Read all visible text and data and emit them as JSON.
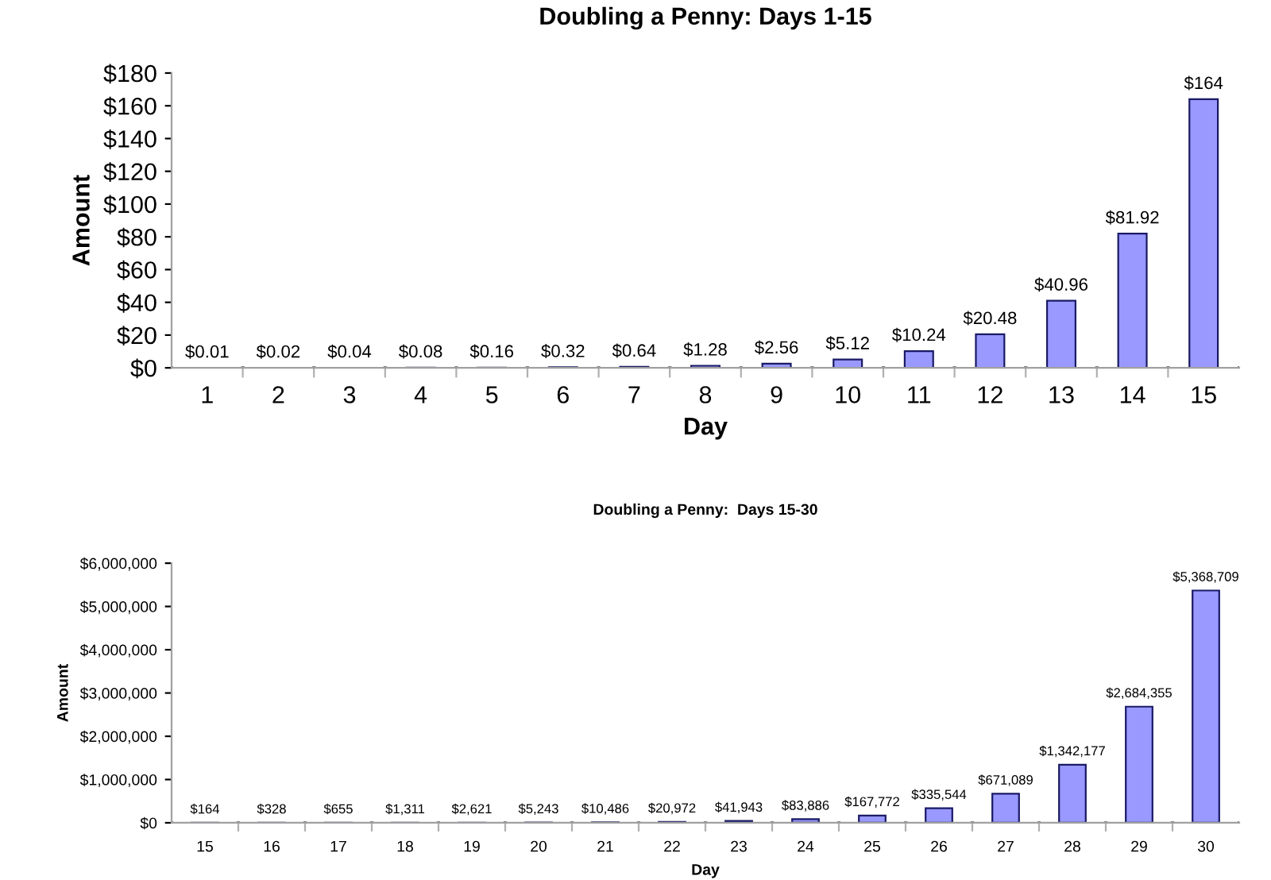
{
  "chart_data": [
    {
      "type": "bar",
      "title": "Doubling a Penny: Days 1-15",
      "xlabel": "Day",
      "ylabel": "Amount",
      "categories": [
        "1",
        "2",
        "3",
        "4",
        "5",
        "6",
        "7",
        "8",
        "9",
        "10",
        "11",
        "12",
        "13",
        "14",
        "15"
      ],
      "values": [
        0.01,
        0.02,
        0.04,
        0.08,
        0.16,
        0.32,
        0.64,
        1.28,
        2.56,
        5.12,
        10.24,
        20.48,
        40.96,
        81.92,
        164
      ],
      "value_labels": [
        "$0.01",
        "$0.02",
        "$0.04",
        "$0.08",
        "$0.16",
        "$0.32",
        "$0.64",
        "$1.28",
        "$2.56",
        "$5.12",
        "$10.24",
        "$20.48",
        "$40.96",
        "$81.92",
        "$164"
      ],
      "color": "#9999ff",
      "ylim": [
        0,
        180
      ],
      "yticks": [
        {
          "value": 0,
          "label": "$0"
        },
        {
          "value": 20,
          "label": "$20"
        },
        {
          "value": 40,
          "label": "$40"
        },
        {
          "value": 60,
          "label": "$60"
        },
        {
          "value": 80,
          "label": "$80"
        },
        {
          "value": 100,
          "label": "$100"
        },
        {
          "value": 120,
          "label": "$120"
        },
        {
          "value": 140,
          "label": "$140"
        },
        {
          "value": 160,
          "label": "$160"
        },
        {
          "value": 180,
          "label": "$180"
        }
      ],
      "grid": false,
      "legend": false
    },
    {
      "type": "bar",
      "title": "Doubling a Penny:  Days 15-30",
      "xlabel": "Day",
      "ylabel": "Amount",
      "categories": [
        "15",
        "16",
        "17",
        "18",
        "19",
        "20",
        "21",
        "22",
        "23",
        "24",
        "25",
        "26",
        "27",
        "28",
        "29",
        "30"
      ],
      "values": [
        164,
        328,
        655,
        1311,
        2621,
        5243,
        10486,
        20972,
        41943,
        83886,
        167772,
        335544,
        671089,
        1342177,
        2684355,
        5368709
      ],
      "value_labels": [
        "$164",
        "$328",
        "$655",
        "$1,311",
        "$2,621",
        "$5,243",
        "$10,486",
        "$20,972",
        "$41,943",
        "$83,886",
        "$167,772",
        "$335,544",
        "$671,089",
        "$1,342,177",
        "$2,684,355",
        "$5,368,709"
      ],
      "color": "#9999ff",
      "ylim": [
        0,
        6000000
      ],
      "yticks": [
        {
          "value": 0,
          "label": "$0"
        },
        {
          "value": 1000000,
          "label": "$1,000,000"
        },
        {
          "value": 2000000,
          "label": "$2,000,000"
        },
        {
          "value": 3000000,
          "label": "$3,000,000"
        },
        {
          "value": 4000000,
          "label": "$4,000,000"
        },
        {
          "value": 5000000,
          "label": "$5,000,000"
        },
        {
          "value": 6000000,
          "label": "$6,000,000"
        }
      ],
      "grid": false,
      "legend": false
    }
  ]
}
